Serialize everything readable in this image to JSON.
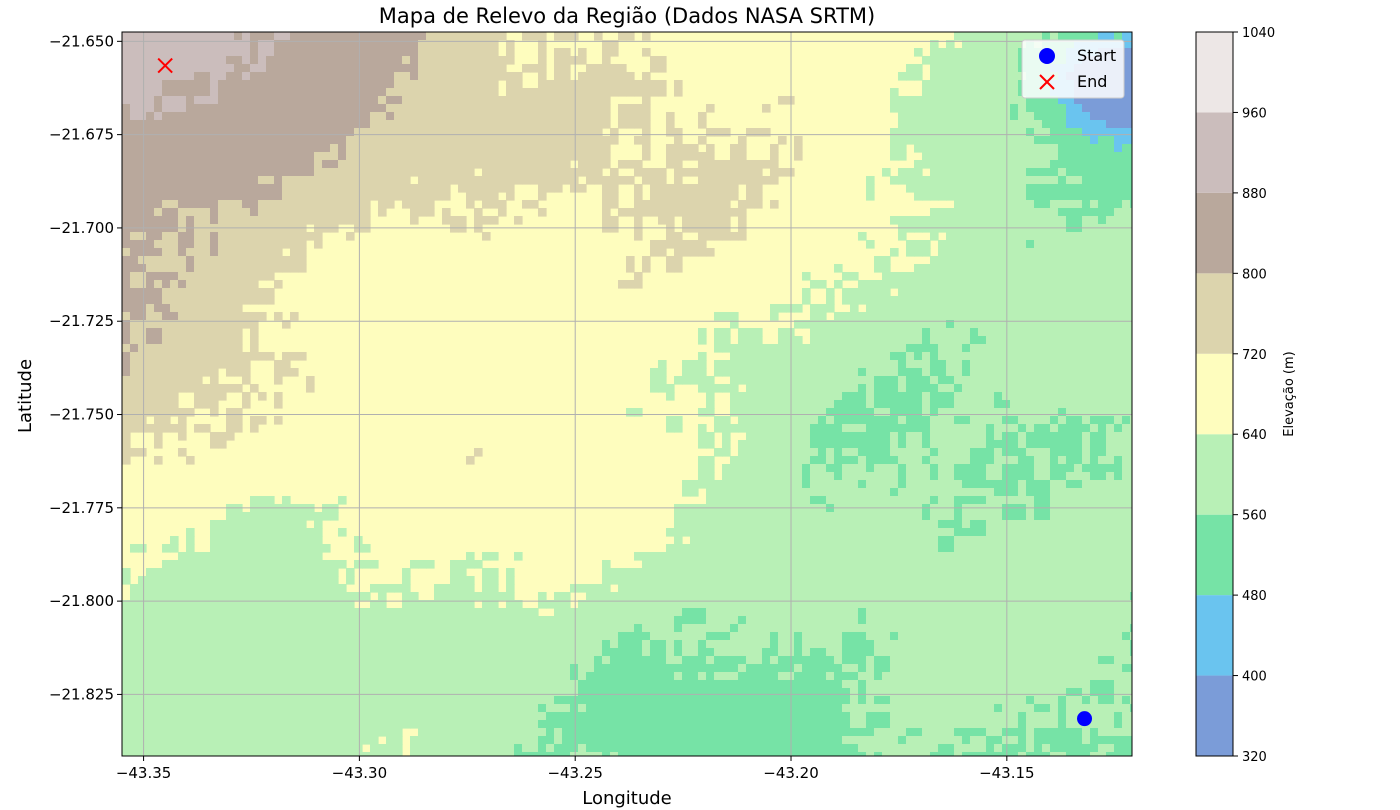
{
  "chart_data": {
    "type": "contour",
    "title": "Mapa de Relevo da Região (Dados NASA SRTM)",
    "xlabel": "Longitude",
    "ylabel": "Latitude",
    "xlim": [
      -43.355,
      -43.121
    ],
    "ylim": [
      -21.8415,
      -21.6475
    ],
    "x_ticks": [
      -43.35,
      -43.3,
      -43.25,
      -43.2,
      -43.15
    ],
    "x_tick_labels": [
      "−43.35",
      "−43.30",
      "−43.25",
      "−43.20",
      "−43.15"
    ],
    "y_ticks": [
      -21.65,
      -21.675,
      -21.7,
      -21.725,
      -21.75,
      -21.775,
      -21.8,
      -21.825
    ],
    "y_tick_labels": [
      "−21.650",
      "−21.675",
      "−21.700",
      "−21.725",
      "−21.750",
      "−21.775",
      "−21.800",
      "−21.825"
    ],
    "grid": true,
    "colorbar": {
      "label": "Elevação (m)",
      "levels": [
        320,
        400,
        480,
        560,
        640,
        720,
        800,
        880,
        960,
        1040
      ],
      "level_labels": [
        "320",
        "400",
        "480",
        "560",
        "640",
        "720",
        "800",
        "880",
        "960",
        "1040"
      ],
      "colors": [
        "#7b9cd8",
        "#6ac4ef",
        "#76e3a6",
        "#b8f0b6",
        "#fefdbe",
        "#dcd4ad",
        "#b9a89c",
        "#cbbdbc",
        "#ede7e6"
      ]
    },
    "points": [
      {
        "name": "Start",
        "lon": -43.132,
        "lat": -21.8315,
        "marker": "circle",
        "color": "#0000ff"
      },
      {
        "name": "End",
        "lon": -43.345,
        "lat": -21.6565,
        "marker": "x",
        "color": "#ff0000"
      }
    ],
    "legend_position": "top-right"
  }
}
